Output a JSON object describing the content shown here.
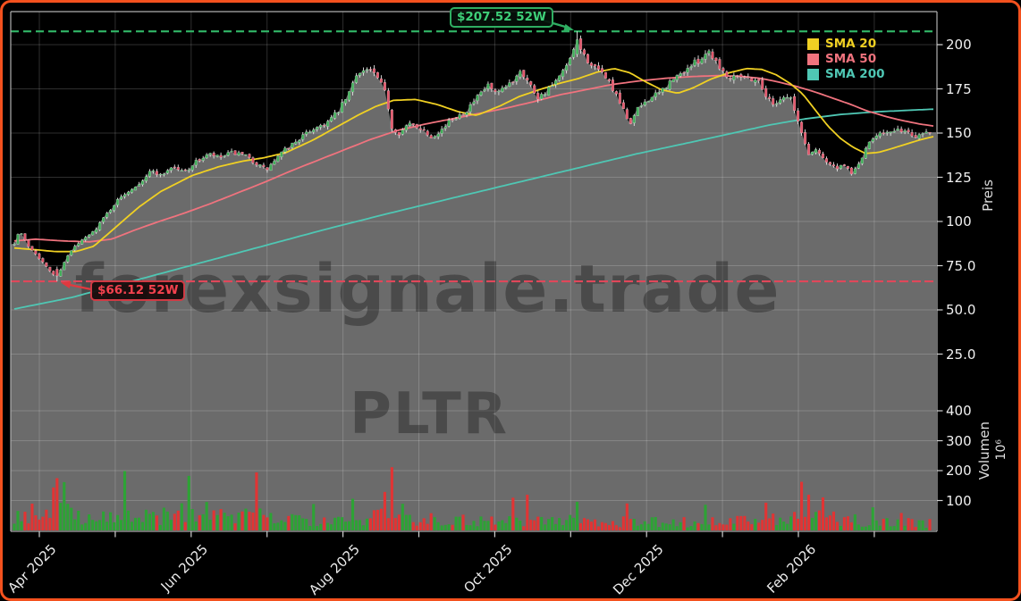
{
  "watermarks": {
    "main": "forexsignale.trade",
    "symbol": "PLTR"
  },
  "legend": {
    "items": [
      {
        "label": "SMA 20",
        "color": "#f0d023"
      },
      {
        "label": "SMA 50",
        "color": "#f0737e"
      },
      {
        "label": "SMA 200",
        "color": "#4fc7b4"
      }
    ]
  },
  "annotations": {
    "high": {
      "text": "$207.52 52W",
      "value": 207.52,
      "color": "#2fae62"
    },
    "low": {
      "text": "$66.12 52W",
      "value": 66.12,
      "color": "#e0475a"
    }
  },
  "colors": {
    "background": "#000000",
    "frame_border": "#f4511e",
    "area_fill": "#6b6b6b",
    "grid": "rgba(255,255,255,0.18)",
    "spine": "#b0b0b0",
    "candle_up": "#3fae58",
    "candle_down": "#e2556a",
    "wick": "#e6e6e6",
    "volume_up": "#2da335",
    "volume_down": "#e13434",
    "sma20": "#f0d023",
    "sma50": "#f0737e",
    "sma200": "#4fc7b4",
    "dashed_high": "#2fae62",
    "dashed_low": "#e0475a",
    "tick_text": "#f0f0f0"
  },
  "chart_data": {
    "type": "candlestick+volume",
    "symbol": "PLTR",
    "high_52w": 207.52,
    "low_52w": 66.12,
    "price_axis": {
      "label": "Preis",
      "tick_values": [
        200,
        175,
        150,
        125,
        100,
        75,
        50,
        25
      ],
      "tick_labels": [
        "200",
        "175",
        "150",
        "125",
        "100",
        "75.0",
        "50.0",
        "25.0"
      ]
    },
    "volume_axis": {
      "label": "Volumen",
      "unit": "10⁶",
      "tick_values": [
        400,
        300,
        200,
        100
      ],
      "tick_labels": [
        "400",
        "300",
        "200",
        "100"
      ]
    },
    "x_axis": {
      "month_labels": [
        "Apr 2025",
        "Jun 2025",
        "Aug 2025",
        "Oct 2025",
        "Dec 2025",
        "Feb 2026"
      ],
      "months_total": 12,
      "labeled_every": 2
    },
    "num_days": 258,
    "close_keyframes": [
      [
        16,
        88
      ],
      [
        22,
        95
      ],
      [
        30,
        87
      ],
      [
        40,
        82
      ],
      [
        52,
        74
      ],
      [
        64,
        68
      ],
      [
        70,
        76
      ],
      [
        82,
        85
      ],
      [
        94,
        90
      ],
      [
        104,
        94
      ],
      [
        116,
        102
      ],
      [
        128,
        110
      ],
      [
        140,
        116
      ],
      [
        156,
        122
      ],
      [
        170,
        129
      ],
      [
        180,
        126
      ],
      [
        192,
        131
      ],
      [
        206,
        128
      ],
      [
        220,
        134
      ],
      [
        234,
        138
      ],
      [
        246,
        136
      ],
      [
        260,
        139
      ],
      [
        274,
        137
      ],
      [
        286,
        133
      ],
      [
        298,
        129
      ],
      [
        310,
        136
      ],
      [
        322,
        142
      ],
      [
        338,
        148
      ],
      [
        352,
        153
      ],
      [
        366,
        156
      ],
      [
        378,
        162
      ],
      [
        390,
        172
      ],
      [
        400,
        185
      ],
      [
        414,
        186
      ],
      [
        422,
        181
      ],
      [
        432,
        172
      ],
      [
        438,
        153
      ],
      [
        446,
        150
      ],
      [
        458,
        155
      ],
      [
        470,
        153
      ],
      [
        482,
        148
      ],
      [
        494,
        152
      ],
      [
        506,
        158
      ],
      [
        522,
        163
      ],
      [
        534,
        170
      ],
      [
        546,
        177
      ],
      [
        554,
        172
      ],
      [
        562,
        174
      ],
      [
        574,
        180
      ],
      [
        582,
        186
      ],
      [
        592,
        178
      ],
      [
        602,
        170
      ],
      [
        614,
        175
      ],
      [
        624,
        180
      ],
      [
        634,
        188
      ],
      [
        641,
        195
      ],
      [
        646,
        202
      ],
      [
        654,
        193
      ],
      [
        666,
        186
      ],
      [
        678,
        182
      ],
      [
        688,
        172
      ],
      [
        698,
        162
      ],
      [
        704,
        155
      ],
      [
        714,
        164
      ],
      [
        724,
        169
      ],
      [
        736,
        172
      ],
      [
        748,
        178
      ],
      [
        760,
        183
      ],
      [
        772,
        188
      ],
      [
        784,
        192
      ],
      [
        792,
        197
      ],
      [
        802,
        190
      ],
      [
        814,
        181
      ],
      [
        824,
        184
      ],
      [
        836,
        181
      ],
      [
        848,
        180
      ],
      [
        856,
        172
      ],
      [
        864,
        166
      ],
      [
        874,
        170
      ],
      [
        884,
        171
      ],
      [
        890,
        160
      ],
      [
        898,
        148
      ],
      [
        904,
        138
      ],
      [
        914,
        141
      ],
      [
        924,
        134
      ],
      [
        934,
        130
      ],
      [
        944,
        131
      ],
      [
        954,
        127
      ],
      [
        964,
        136
      ],
      [
        974,
        146
      ],
      [
        984,
        151
      ],
      [
        996,
        150
      ],
      [
        1010,
        152
      ],
      [
        1022,
        148
      ],
      [
        1034,
        151
      ],
      [
        1044,
        150
      ]
    ],
    "sma20_keyframes": [
      [
        16,
        85
      ],
      [
        40,
        84
      ],
      [
        62,
        83
      ],
      [
        85,
        83
      ],
      [
        105,
        86
      ],
      [
        130,
        97
      ],
      [
        155,
        108
      ],
      [
        180,
        117
      ],
      [
        215,
        126
      ],
      [
        245,
        131
      ],
      [
        270,
        134
      ],
      [
        295,
        136
      ],
      [
        320,
        139
      ],
      [
        350,
        146
      ],
      [
        375,
        153
      ],
      [
        400,
        160
      ],
      [
        420,
        165
      ],
      [
        440,
        168.5
      ],
      [
        465,
        169
      ],
      [
        490,
        166
      ],
      [
        513,
        162
      ],
      [
        533,
        160
      ],
      [
        560,
        165.5
      ],
      [
        580,
        170.5
      ],
      [
        600,
        174
      ],
      [
        625,
        178
      ],
      [
        648,
        181
      ],
      [
        668,
        184.5
      ],
      [
        687,
        186.5
      ],
      [
        705,
        184
      ],
      [
        722,
        179
      ],
      [
        740,
        174.5
      ],
      [
        758,
        172.5
      ],
      [
        775,
        175.5
      ],
      [
        795,
        180.5
      ],
      [
        815,
        184
      ],
      [
        835,
        186.5
      ],
      [
        852,
        186
      ],
      [
        868,
        183
      ],
      [
        884,
        178
      ],
      [
        898,
        172
      ],
      [
        912,
        163
      ],
      [
        926,
        154
      ],
      [
        940,
        147
      ],
      [
        954,
        142
      ],
      [
        968,
        138.5
      ],
      [
        982,
        139
      ],
      [
        996,
        141
      ],
      [
        1012,
        143.5
      ],
      [
        1028,
        146
      ],
      [
        1044,
        148
      ]
    ],
    "sma50_keyframes": [
      [
        16,
        89
      ],
      [
        40,
        90
      ],
      [
        70,
        89
      ],
      [
        100,
        88.5
      ],
      [
        125,
        90
      ],
      [
        150,
        95
      ],
      [
        175,
        99.5
      ],
      [
        205,
        104.5
      ],
      [
        235,
        110
      ],
      [
        265,
        116
      ],
      [
        295,
        122
      ],
      [
        325,
        128.5
      ],
      [
        355,
        134.5
      ],
      [
        385,
        140.5
      ],
      [
        415,
        146.5
      ],
      [
        445,
        151.5
      ],
      [
        475,
        155
      ],
      [
        505,
        158
      ],
      [
        535,
        161
      ],
      [
        565,
        164
      ],
      [
        595,
        167.5
      ],
      [
        625,
        171.5
      ],
      [
        655,
        174.5
      ],
      [
        685,
        177.5
      ],
      [
        715,
        179.5
      ],
      [
        745,
        181
      ],
      [
        775,
        182
      ],
      [
        805,
        182.5
      ],
      [
        830,
        182
      ],
      [
        850,
        181
      ],
      [
        870,
        179
      ],
      [
        890,
        176.5
      ],
      [
        910,
        173.5
      ],
      [
        930,
        170
      ],
      [
        950,
        166.5
      ],
      [
        970,
        162.5
      ],
      [
        990,
        159.5
      ],
      [
        1010,
        157
      ],
      [
        1030,
        155
      ],
      [
        1044,
        154
      ]
    ],
    "sma200_keyframes": [
      [
        16,
        50.5
      ],
      [
        80,
        57
      ],
      [
        150,
        66.5
      ],
      [
        220,
        76
      ],
      [
        290,
        85.5
      ],
      [
        360,
        95
      ],
      [
        430,
        104
      ],
      [
        500,
        112.5
      ],
      [
        570,
        121
      ],
      [
        640,
        129.5
      ],
      [
        710,
        138
      ],
      [
        770,
        144.5
      ],
      [
        820,
        150
      ],
      [
        860,
        154.5
      ],
      [
        900,
        158
      ],
      [
        940,
        160.5
      ],
      [
        980,
        162
      ],
      [
        1020,
        163
      ],
      [
        1044,
        163.5
      ]
    ],
    "volume_base_keyframes": [
      [
        16,
        50
      ],
      [
        60,
        65
      ],
      [
        120,
        45
      ],
      [
        200,
        48
      ],
      [
        290,
        45
      ],
      [
        360,
        40
      ],
      [
        440,
        48
      ],
      [
        520,
        34
      ],
      [
        600,
        36
      ],
      [
        680,
        30
      ],
      [
        760,
        28
      ],
      [
        840,
        32
      ],
      [
        900,
        46
      ],
      [
        960,
        32
      ],
      [
        1044,
        24
      ]
    ],
    "volume_spikes": [
      [
        58,
        148
      ],
      [
        64,
        172
      ],
      [
        70,
        158
      ],
      [
        141,
        198
      ],
      [
        205,
        92
      ],
      [
        211,
        178
      ],
      [
        232,
        96
      ],
      [
        286,
        198
      ],
      [
        352,
        90
      ],
      [
        394,
        104
      ],
      [
        432,
        128
      ],
      [
        438,
        215
      ],
      [
        450,
        88
      ],
      [
        572,
        108
      ],
      [
        590,
        118
      ],
      [
        647,
        95
      ],
      [
        700,
        92
      ],
      [
        790,
        86
      ],
      [
        855,
        95
      ],
      [
        895,
        158
      ],
      [
        905,
        118
      ],
      [
        922,
        108
      ],
      [
        975,
        78
      ],
      [
        1008,
        58
      ]
    ]
  }
}
